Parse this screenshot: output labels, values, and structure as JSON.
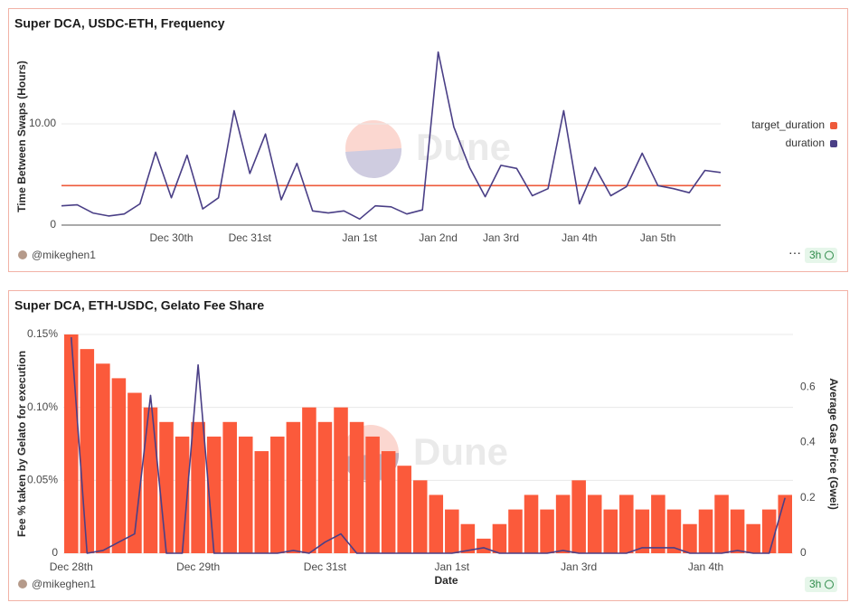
{
  "chart_data": [
    {
      "type": "line",
      "title": "Super DCA, USDC-ETH, Frequency",
      "ylabel": "Time Between Swaps (Hours)",
      "legend": "right",
      "categories": [
        null,
        null,
        null,
        null,
        null,
        null,
        null,
        "Dec 30th",
        null,
        null,
        null,
        null,
        "Dec 31st",
        null,
        null,
        null,
        null,
        null,
        null,
        "Jan 1st",
        null,
        null,
        null,
        null,
        "Jan 2nd",
        null,
        null,
        null,
        "Jan 3rd",
        null,
        null,
        null,
        null,
        "Jan 4th",
        null,
        null,
        null,
        null,
        "Jan 5th",
        null,
        null,
        null,
        null
      ],
      "ylim": [
        0,
        17.5
      ],
      "yticks": [
        0,
        {
          "value": 10,
          "label": "10.00"
        }
      ],
      "grid": true,
      "series": [
        {
          "name": "target_duration",
          "color": "#ee5a3b",
          "values": [
            3.9,
            3.9,
            3.9,
            3.9,
            3.9,
            3.9,
            3.9,
            3.9,
            3.9,
            3.9,
            3.9,
            3.9,
            3.9,
            3.9,
            3.9,
            3.9,
            3.9,
            3.9,
            3.9,
            3.9,
            3.9,
            3.9,
            3.9,
            3.9,
            3.9,
            3.9,
            3.9,
            3.9,
            3.9,
            3.9,
            3.9,
            3.9,
            3.9,
            3.9,
            3.9,
            3.9,
            3.9,
            3.9,
            3.9,
            3.9,
            3.9,
            3.9,
            3.9
          ]
        },
        {
          "name": "duration",
          "color": "#4a3f86",
          "values": [
            1.9,
            2.0,
            1.2,
            0.9,
            1.1,
            2.1,
            7.2,
            2.7,
            6.9,
            1.6,
            2.7,
            11.3,
            5.1,
            9.0,
            2.5,
            6.1,
            1.4,
            1.2,
            1.4,
            0.6,
            1.9,
            1.8,
            1.1,
            1.5,
            17.1,
            9.7,
            5.7,
            2.8,
            5.9,
            5.6,
            2.9,
            3.6,
            11.3,
            2.1,
            5.7,
            2.9,
            3.8,
            7.1,
            3.9,
            3.6,
            3.2,
            5.4,
            5.2
          ]
        }
      ]
    },
    {
      "type": "bar",
      "title": "Super DCA, ETH-USDC, Gelato Fee Share",
      "xlabel": "Date",
      "ylabel": "Fee % taken by Gelato for execution",
      "y2label": "Average Gas Price (Gwei)",
      "categories": [
        "Dec 28th",
        null,
        null,
        null,
        null,
        null,
        null,
        null,
        "Dec 29th",
        null,
        null,
        null,
        null,
        null,
        null,
        null,
        "Dec 31st",
        null,
        null,
        null,
        null,
        null,
        null,
        null,
        "Jan 1st",
        null,
        null,
        null,
        null,
        null,
        null,
        null,
        "Jan 3rd",
        null,
        null,
        null,
        null,
        null,
        null,
        null,
        "Jan 4th",
        null,
        null,
        null,
        null,
        null
      ],
      "ylim": [
        0,
        0.15
      ],
      "yticks": [
        0,
        {
          "value": 0.05,
          "label": "0.05%"
        },
        {
          "value": 0.1,
          "label": "0.10%"
        },
        {
          "value": 0.15,
          "label": "0.15%"
        }
      ],
      "y2lim": [
        0,
        0.79
      ],
      "y2ticks": [
        0,
        0.2,
        0.4,
        0.6
      ],
      "grid": true,
      "series": [
        {
          "type": "bar",
          "color": "#fb5a3b",
          "values": [
            0.15,
            0.14,
            0.13,
            0.12,
            0.11,
            0.1,
            0.09,
            0.08,
            0.09,
            0.08,
            0.09,
            0.08,
            0.07,
            0.08,
            0.09,
            0.1,
            0.09,
            0.1,
            0.09,
            0.08,
            0.07,
            0.06,
            0.05,
            0.04,
            0.03,
            0.02,
            0.01,
            0.02,
            0.03,
            0.04,
            0.03,
            0.04,
            0.05,
            0.04,
            0.03,
            0.04,
            0.03,
            0.04,
            0.03,
            0.02,
            0.03,
            0.04,
            0.03,
            0.02,
            0.03,
            0.04
          ]
        },
        {
          "type": "line",
          "axis": "y2",
          "color": "#4a3f86",
          "values": [
            0.78,
            0,
            0.01,
            0.04,
            0.07,
            0.57,
            0,
            0,
            0.68,
            0,
            0,
            0,
            0,
            0,
            0.01,
            0,
            0.04,
            0.07,
            0,
            0,
            0,
            0,
            0,
            0,
            0,
            0.01,
            0.02,
            0,
            0,
            0,
            0,
            0.01,
            0,
            0,
            0,
            0,
            0.02,
            0.02,
            0.02,
            0,
            0,
            0,
            0.01,
            0,
            0,
            0.2
          ]
        }
      ]
    }
  ],
  "author": "@mikeghen1",
  "age": "3h",
  "watermark": "Dune"
}
